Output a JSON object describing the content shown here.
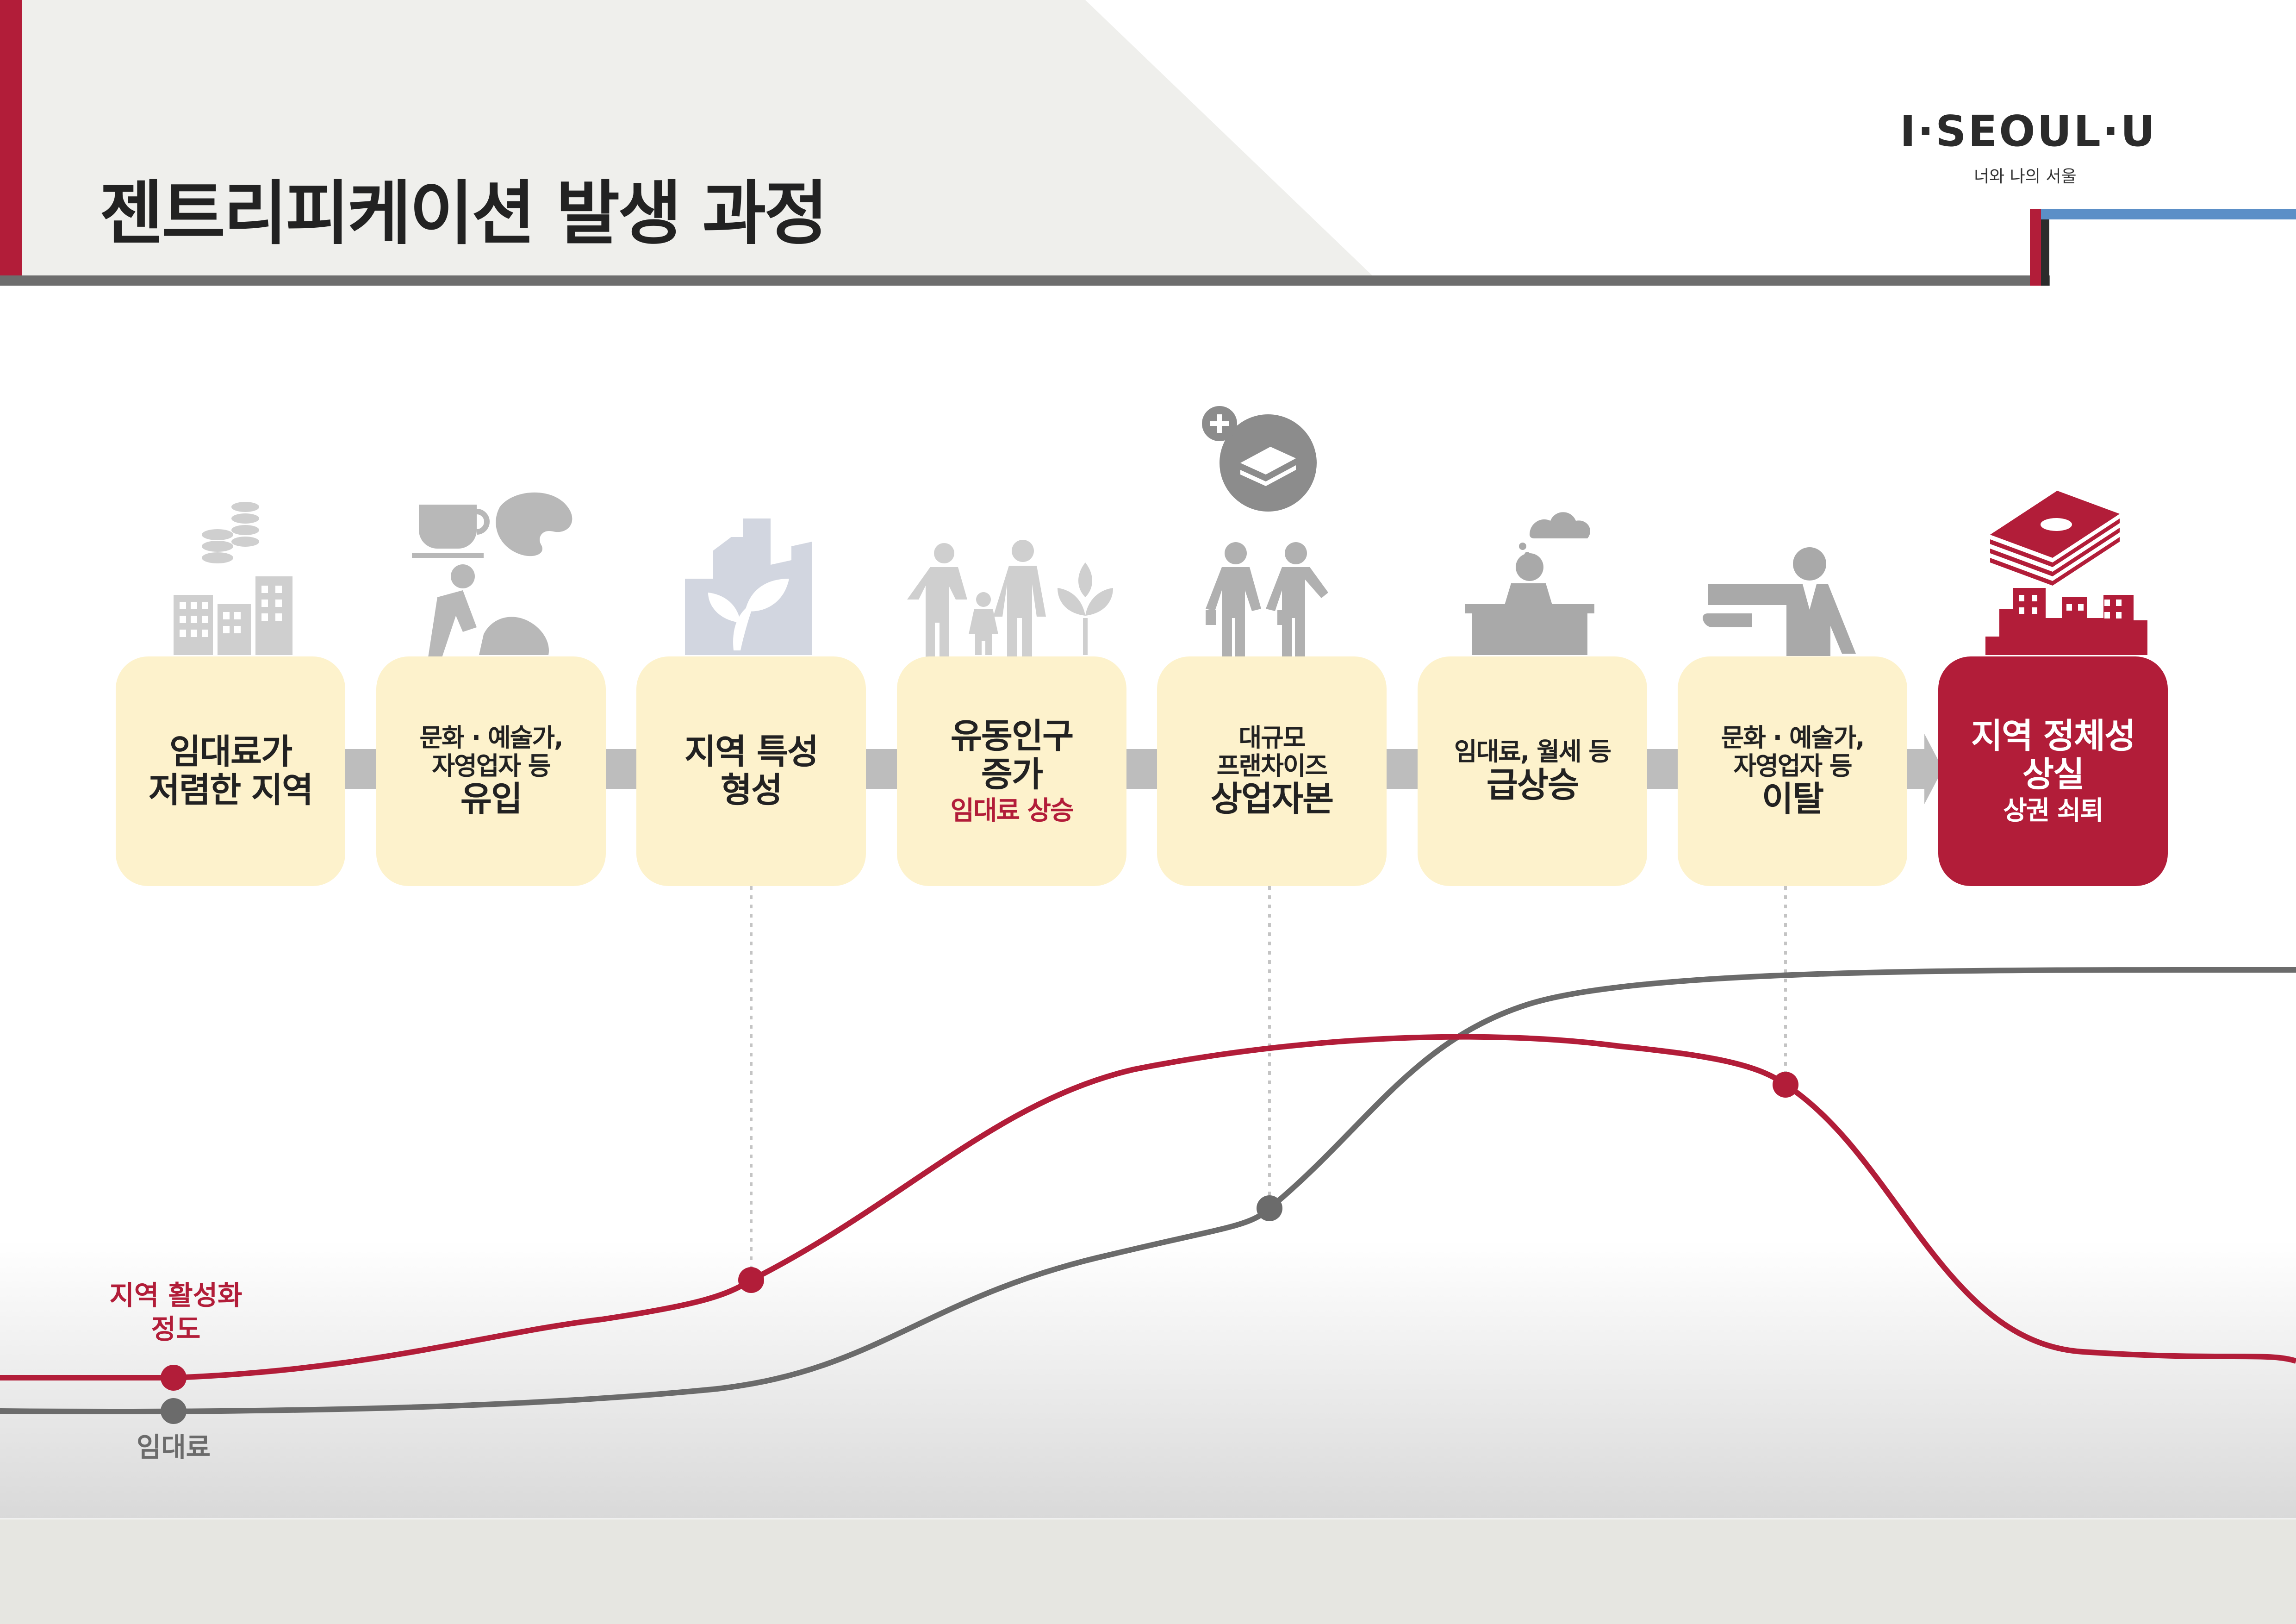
{
  "header": {
    "title": "젠트리피케이션 발생 과정"
  },
  "logo": {
    "text": "I·SEOUL·U",
    "subtitle": "너와 나의 서울"
  },
  "steps": [
    {
      "lines": [
        "임대료가",
        "저렴한 지역"
      ],
      "icon": "buildings-coins-icon"
    },
    {
      "lines": [
        "문화 · 예술가,",
        "자영업자 등",
        "유입"
      ],
      "icon": "artist-palette-icon"
    },
    {
      "lines": [
        "지역 특성",
        "형성"
      ],
      "icon": "city-sprout-icon"
    },
    {
      "lines": [
        "유동인구",
        "증가"
      ],
      "highlight": "임대료 상승",
      "icon": "family-icon"
    },
    {
      "lines": [
        "대규모",
        "프랜차이즈",
        "상업자본"
      ],
      "icon": "businessmen-money-icon"
    },
    {
      "lines": [
        "임대료, 월세 등",
        "급상승"
      ],
      "icon": "worried-person-desk-icon"
    },
    {
      "lines": [
        "문화 · 예술가,",
        "자영업자 등",
        "이탈"
      ],
      "icon": "pointing-person-icon"
    },
    {
      "lines": [
        "지역 정체성",
        "상실"
      ],
      "highlight": "상권 쇠퇴",
      "icon": "money-city-icon"
    }
  ],
  "curves": {
    "activation_label": "지역 활성화\n정도",
    "rent_label": "임대료",
    "activation_color": "#b21d39",
    "rent_color": "#6b6b6b"
  },
  "colors": {
    "accent": "#b21d39",
    "box_fill": "#fdf2cc",
    "icon_gray": "#a9a9a9",
    "icon_blue_gray": "#d2d6e0",
    "blue_line": "#5b8fc7"
  }
}
